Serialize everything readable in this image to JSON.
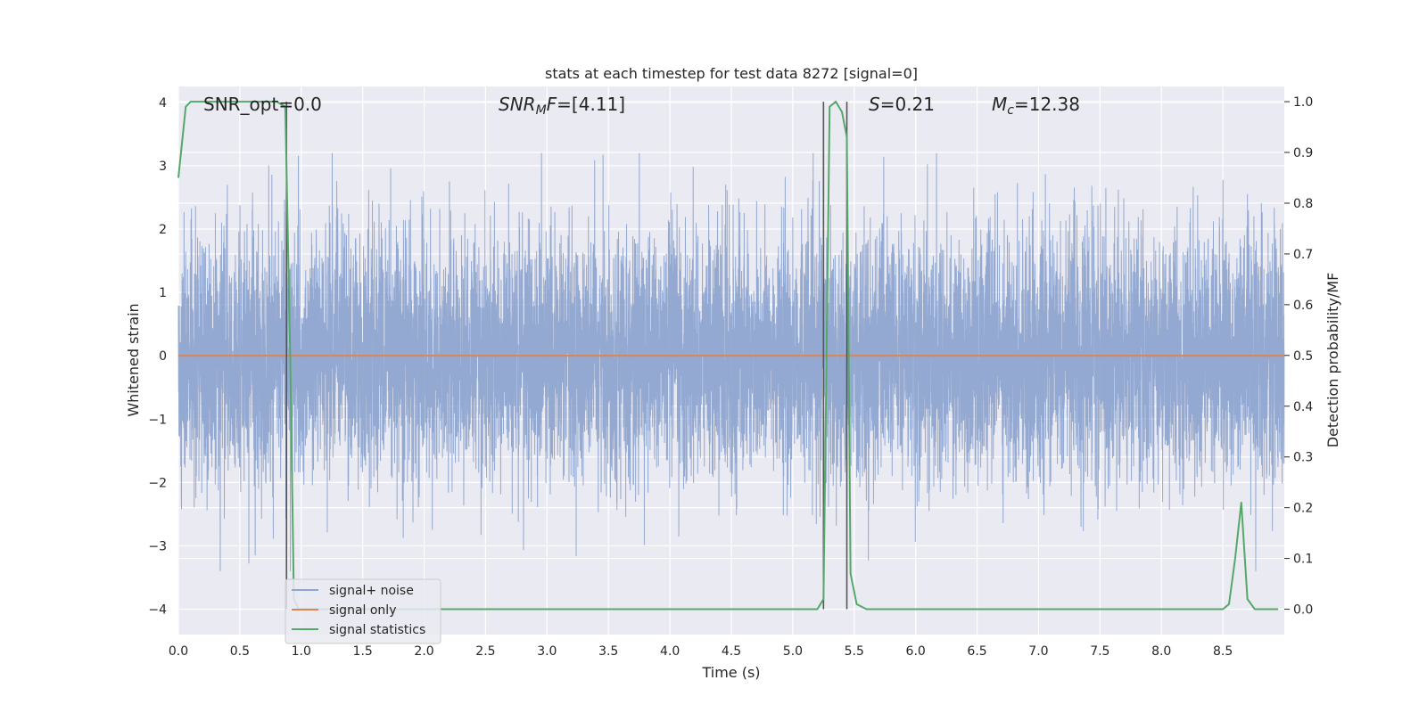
{
  "chart_data": {
    "type": "line",
    "title": "stats at each timestep for test data 8272 [signal=0]",
    "xlabel": "Time (s)",
    "ylabel_left": "Whitened strain",
    "ylabel_right": "Detection probability/MF",
    "xlim": [
      0.0,
      9.0
    ],
    "ylim_left": [
      -4.4,
      4.25
    ],
    "ylim_right": [
      -0.05,
      1.03
    ],
    "grid": true,
    "legend_position": "bottom-left",
    "x_ticks": [
      0.0,
      0.5,
      1.0,
      1.5,
      2.0,
      2.5,
      3.0,
      3.5,
      4.0,
      4.5,
      5.0,
      5.5,
      6.0,
      6.5,
      7.0,
      7.5,
      8.0,
      8.5
    ],
    "x_tick_labels": [
      "0.0",
      "0.5",
      "1.0",
      "1.5",
      "2.0",
      "2.5",
      "3.0",
      "3.5",
      "4.0",
      "4.5",
      "5.0",
      "5.5",
      "6.0",
      "6.5",
      "7.0",
      "7.5",
      "8.0",
      "8.5"
    ],
    "y_left_ticks": [
      4,
      3,
      2,
      1,
      0,
      -1,
      -2,
      -3,
      -4
    ],
    "y_left_tick_labels": [
      "4",
      "3",
      "2",
      "1",
      "0",
      "−1",
      "−2",
      "−3",
      "−4"
    ],
    "y_right_ticks": [
      1.0,
      0.9,
      0.8,
      0.7,
      0.6,
      0.5,
      0.4,
      0.3,
      0.2,
      0.1,
      0.0
    ],
    "y_right_tick_labels": [
      "1.0",
      "0.9",
      "0.8",
      "0.7",
      "0.6",
      "0.5",
      "0.4",
      "0.3",
      "0.2",
      "0.1",
      "0.0"
    ],
    "annotations": {
      "snr_opt": "SNR_opt=0.0",
      "snr_mf_sym": "SNR",
      "snr_mf_sub": "M",
      "snr_mf_f": "F",
      "snr_mf_val": "=[4.11]",
      "s_sym": "S",
      "s_val": "=0.21",
      "mc_sym": "M",
      "mc_sub": "c",
      "mc_val": "=12.38"
    },
    "vertical_markers": [
      0.88,
      5.25,
      5.44
    ],
    "series": [
      {
        "name": "signal+ noise",
        "color": "#8fa5cf",
        "axis": "left",
        "kind": "noise",
        "sample_rate_hz": 1024,
        "rms_std": 0.95,
        "peak_range": [
          -3.4,
          3.2
        ]
      },
      {
        "name": "signal only",
        "color": "#dd8452",
        "axis": "left",
        "x": [
          0.0,
          9.0
        ],
        "y": [
          0.0,
          0.0
        ]
      },
      {
        "name": "signal statistics",
        "color": "#55a868",
        "axis": "right",
        "x": [
          0.0,
          0.06,
          0.1,
          0.15,
          0.2,
          0.3,
          0.4,
          0.5,
          0.6,
          0.7,
          0.8,
          0.87,
          0.91,
          0.94,
          0.98,
          1.05,
          5.2,
          5.25,
          5.3,
          5.35,
          5.4,
          5.44,
          5.47,
          5.52,
          5.6,
          5.7,
          8.5,
          8.55,
          8.6,
          8.65,
          8.7,
          8.76,
          8.8,
          8.85,
          8.9,
          8.95
        ],
        "y": [
          0.85,
          0.99,
          1.0,
          1.0,
          1.0,
          1.0,
          1.0,
          1.0,
          1.0,
          1.0,
          1.0,
          0.99,
          0.5,
          0.02,
          0.0,
          0.0,
          0.0,
          0.02,
          0.99,
          1.0,
          0.98,
          0.93,
          0.07,
          0.01,
          0.0,
          0.0,
          0.0,
          0.01,
          0.1,
          0.21,
          0.02,
          0.0,
          0.0,
          0.0,
          0.0,
          0.0
        ]
      }
    ]
  }
}
